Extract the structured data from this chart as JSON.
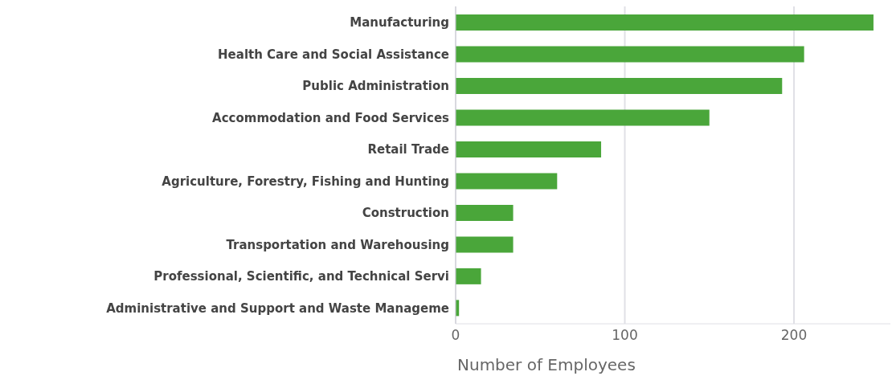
{
  "chart_data": {
    "type": "bar",
    "orientation": "horizontal",
    "xlabel": "Number of Employees",
    "categories": [
      "Manufacturing",
      "Health Care and Social Assistance",
      "Public Administration",
      "Accommodation and Food Services",
      "Retail Trade",
      "Agriculture, Forestry, Fishing and Hunting",
      "Construction",
      "Transportation and Warehousing",
      "Professional, Scientific, and Technical Servi",
      "Administrative and Support and Waste Manageme"
    ],
    "values": [
      247,
      206,
      193,
      150,
      86,
      60,
      34,
      34,
      15,
      2
    ],
    "color": "#4aa63a",
    "xlim": [
      0,
      257
    ],
    "xticks": [
      0,
      100,
      200
    ],
    "grid": "x"
  }
}
